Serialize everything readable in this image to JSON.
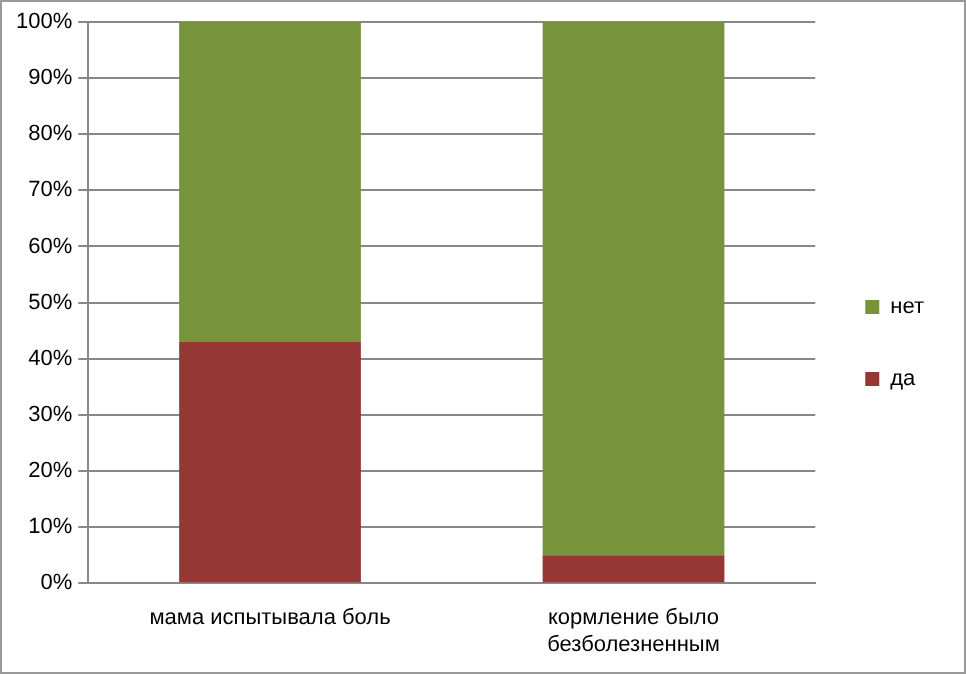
{
  "chart_data": {
    "type": "bar",
    "stacked": true,
    "categories": [
      "мама испытывала боль",
      "кормление было безболезненным"
    ],
    "series": [
      {
        "name": "да",
        "color": "#953735",
        "values": [
          43,
          5
        ]
      },
      {
        "name": "нет",
        "color": "#77933c",
        "values": [
          57,
          95
        ]
      }
    ],
    "ylim": [
      0,
      100
    ],
    "yticks": [
      {
        "value": 0,
        "label": "0%"
      },
      {
        "value": 10,
        "label": "10%"
      },
      {
        "value": 20,
        "label": "20%"
      },
      {
        "value": 30,
        "label": "30%"
      },
      {
        "value": 40,
        "label": "40%"
      },
      {
        "value": 50,
        "label": "50%"
      },
      {
        "value": 60,
        "label": "60%"
      },
      {
        "value": 70,
        "label": "70%"
      },
      {
        "value": 80,
        "label": "80%"
      },
      {
        "value": 90,
        "label": "90%"
      },
      {
        "value": 100,
        "label": "100%"
      }
    ],
    "grid": "y",
    "legend": "right"
  }
}
